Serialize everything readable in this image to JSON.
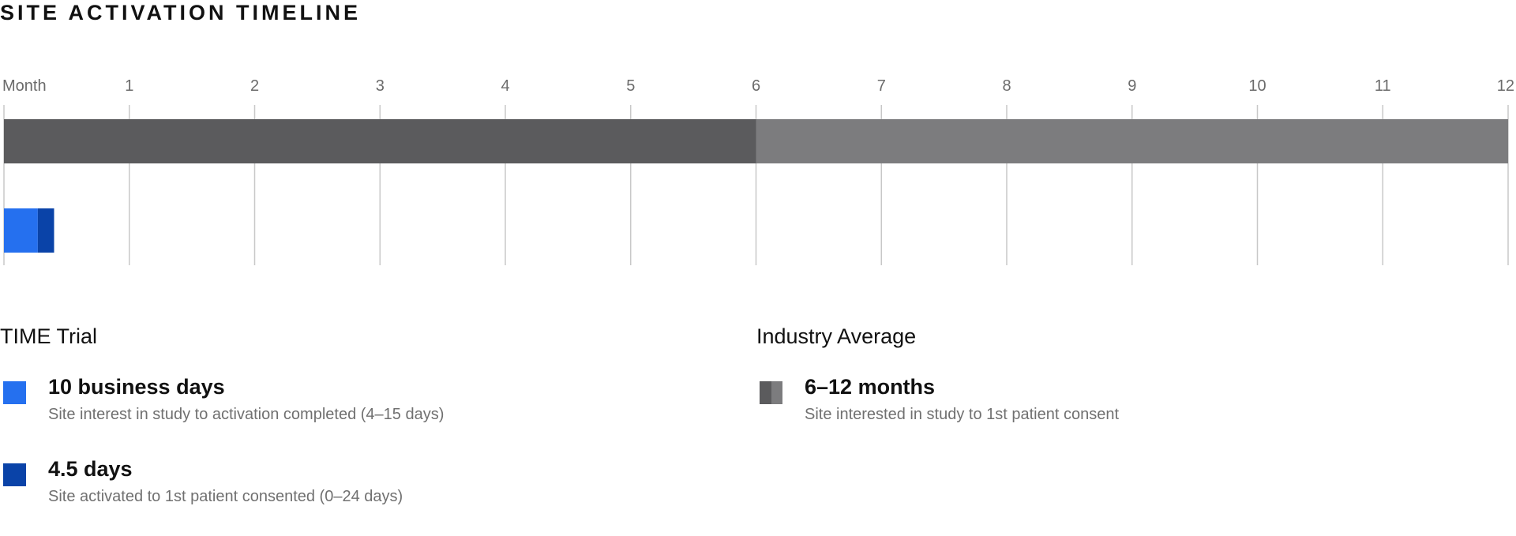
{
  "title": "SITE ACTIVATION TIMELINE",
  "chart_data": {
    "type": "bar",
    "orientation": "horizontal",
    "axis_label": "Month",
    "x_ticks": [
      "1",
      "2",
      "3",
      "4",
      "5",
      "6",
      "7",
      "8",
      "9",
      "10",
      "11",
      "12"
    ],
    "xlim": [
      0,
      12
    ],
    "grid": true,
    "rows": [
      {
        "group": "Industry Average",
        "segments": [
          {
            "label": "6–12 months",
            "start": 0,
            "end": 6,
            "color": "#5b5b5d"
          },
          {
            "label": "6–12 months",
            "start": 6,
            "end": 12,
            "color": "#7c7c7e"
          }
        ]
      },
      {
        "group": "TIME Trial",
        "segments": [
          {
            "label": "10 business days",
            "start": 0,
            "end": 0.27,
            "color": "#2570ef"
          },
          {
            "label": "4.5 days",
            "start": 0.27,
            "end": 0.4,
            "color": "#0a43a8"
          }
        ]
      }
    ]
  },
  "legend": {
    "time_trial": {
      "heading": "TIME Trial",
      "items": [
        {
          "value": "10 business days",
          "desc": "Site interest in study to activation completed (4–15 days)",
          "color": "#2570ef"
        },
        {
          "value": "4.5 days",
          "desc": "Site activated to 1st patient consented (0–24 days)",
          "color": "#0a43a8"
        }
      ]
    },
    "industry": {
      "heading": "Industry Average",
      "items": [
        {
          "value": "6–12 months",
          "desc": "Site interested in study to 1st patient consent",
          "color_a": "#5b5b5d",
          "color_b": "#7c7c7e"
        }
      ]
    }
  }
}
